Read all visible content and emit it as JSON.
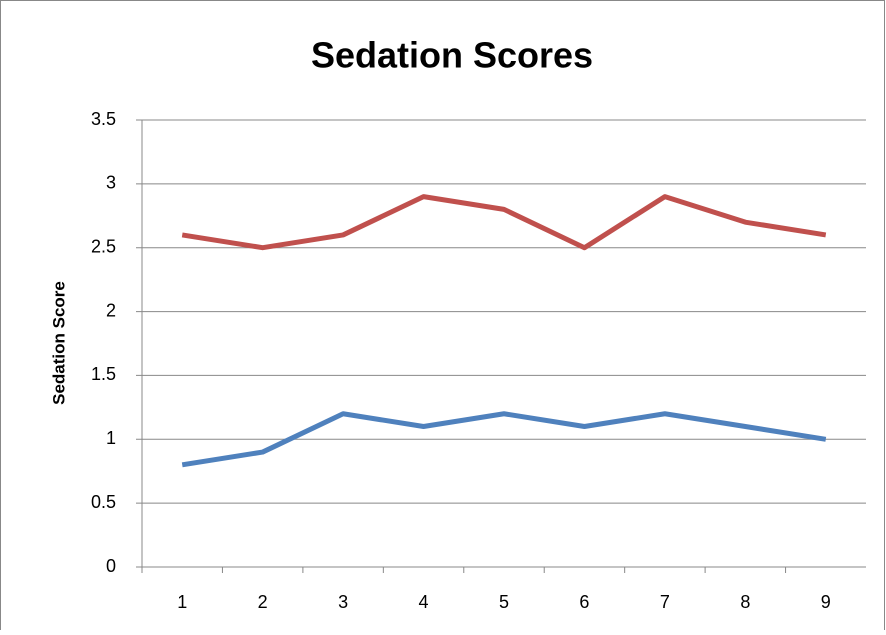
{
  "chart_data": {
    "type": "line",
    "title": "Sedation Scores",
    "y_label": "Sedation Score",
    "categories": [
      1,
      2,
      3,
      4,
      5,
      6,
      7,
      8,
      9
    ],
    "series": [
      {
        "color": "#c0504d",
        "values": [
          2.6,
          2.5,
          2.6,
          2.9,
          2.8,
          2.5,
          2.9,
          2.7,
          2.6
        ]
      },
      {
        "color": "#4f81bd",
        "values": [
          0.8,
          0.9,
          1.2,
          1.1,
          1.2,
          1.1,
          1.2,
          1.1,
          1.0
        ]
      }
    ],
    "ylim": [
      0,
      3.5
    ],
    "yticks": [
      0,
      0.5,
      1,
      1.5,
      2,
      2.5,
      3,
      3.5
    ],
    "grid": true
  }
}
